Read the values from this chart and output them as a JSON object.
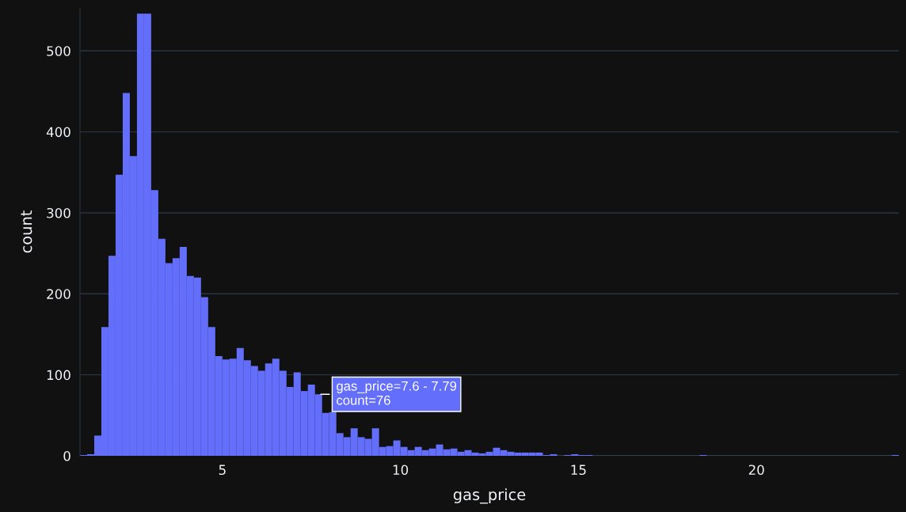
{
  "chart_data": {
    "type": "histogram",
    "xlabel": "gas_price",
    "ylabel": "count",
    "color": "#636efa",
    "bins": [
      1.0,
      1.2,
      1.4,
      1.6,
      1.8,
      2.0,
      2.2,
      2.4,
      2.6,
      2.8,
      3.0,
      3.2,
      3.4,
      3.6,
      3.8,
      4.0,
      4.2,
      4.4,
      4.6,
      4.8,
      5.0,
      5.2,
      5.4,
      5.6,
      5.8,
      6.0,
      6.2,
      6.4,
      6.6,
      6.8,
      7.0,
      7.2,
      7.4,
      7.6,
      7.8,
      8.0,
      8.2,
      8.4,
      8.6,
      8.8,
      9.0,
      9.2,
      9.4,
      9.6,
      9.8,
      10.0,
      10.2,
      10.4,
      10.6,
      10.8,
      11.0,
      11.2,
      11.4,
      11.6,
      11.8,
      12.0,
      12.2,
      12.4,
      12.6,
      12.8,
      13.0,
      13.2,
      13.4,
      13.6,
      13.8,
      14.0,
      14.2,
      14.4,
      14.6,
      14.8,
      15.0,
      15.2,
      15.4,
      15.6,
      15.8,
      16.0,
      16.2,
      16.4,
      16.6,
      16.8,
      17.0,
      17.2,
      17.4,
      17.6,
      17.8,
      18.0,
      18.2,
      18.4,
      18.6,
      18.8,
      19.0,
      19.2,
      19.4,
      19.6,
      19.8,
      20.0,
      20.2,
      20.4,
      20.6,
      20.8,
      21.0,
      21.2,
      21.4,
      21.6,
      21.8,
      22.0,
      22.2,
      22.4,
      22.6,
      22.8,
      23.0,
      23.2,
      23.4,
      23.6,
      23.8,
      24.0
    ],
    "values": [
      1,
      2,
      25,
      159,
      247,
      347,
      448,
      370,
      546,
      546,
      328,
      268,
      238,
      244,
      258,
      222,
      220,
      196,
      159,
      123,
      119,
      120,
      133,
      118,
      111,
      105,
      114,
      120,
      105,
      85,
      103,
      80,
      88,
      76,
      53,
      54,
      28,
      23,
      34,
      23,
      21,
      34,
      11,
      12,
      19,
      11,
      7,
      11,
      7,
      9,
      14,
      8,
      9,
      5,
      7,
      4,
      3,
      5,
      10,
      7,
      5,
      4,
      4,
      4,
      4,
      1,
      2,
      0,
      1,
      2,
      1,
      1,
      0,
      0,
      0,
      0,
      0,
      0,
      0,
      0,
      0,
      0,
      0,
      0,
      0,
      0,
      0,
      1,
      0,
      0,
      0,
      0,
      0,
      0,
      0,
      0,
      0,
      0,
      0,
      0,
      0,
      0,
      0,
      0,
      0,
      0,
      0,
      0,
      0,
      0,
      0,
      0,
      0,
      0,
      1
    ],
    "xlim": [
      1.0,
      24.0
    ],
    "xticks": [
      5,
      10,
      15,
      20
    ],
    "ylim": [
      0,
      553
    ],
    "yticks": [
      0,
      100,
      200,
      300,
      400,
      500
    ],
    "grid": "y",
    "annotations": [
      {
        "text": "gas_price=7.6 - 7.79\ncount=76",
        "x": 7.7,
        "y": 76
      }
    ]
  }
}
